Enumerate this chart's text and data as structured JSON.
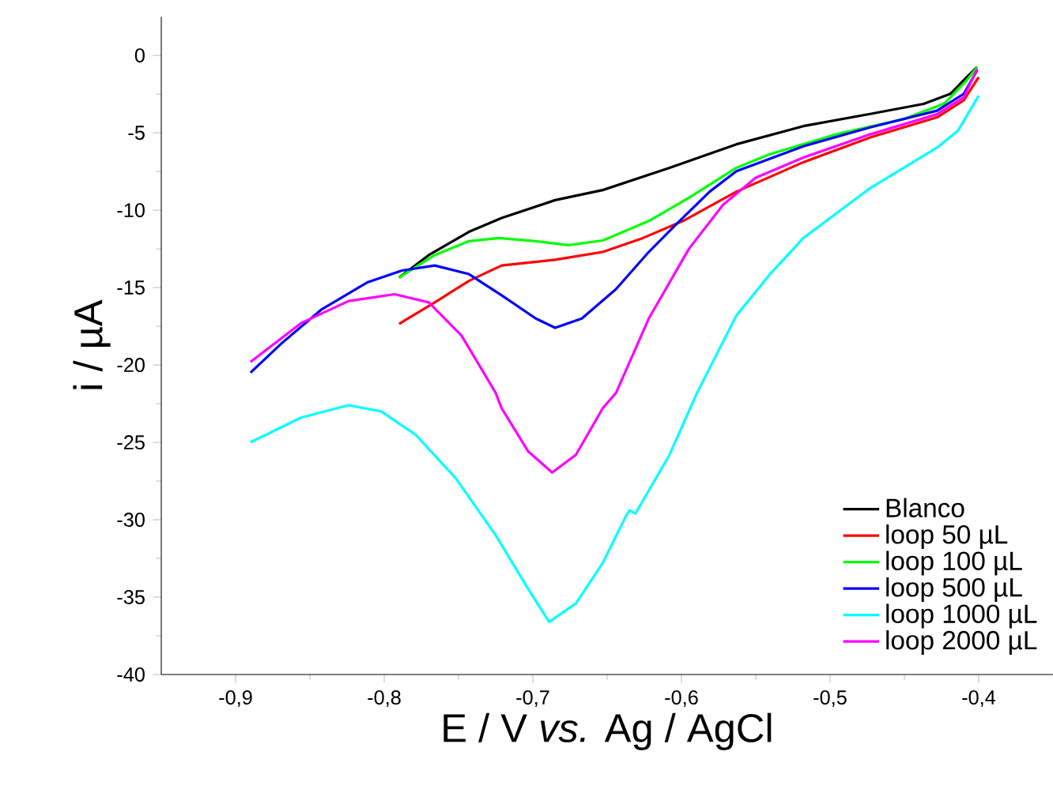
{
  "chart_data": {
    "type": "line",
    "xlabel": "E / V *vs.* Ag / AgCl",
    "ylabel": "i / µA",
    "xlim": [
      -0.95,
      -0.35
    ],
    "ylim": [
      -40,
      2.5
    ],
    "xticks": [
      {
        "value": -0.9,
        "label": "-0,9"
      },
      {
        "value": -0.8,
        "label": "-0,8"
      },
      {
        "value": -0.7,
        "label": "-0,7"
      },
      {
        "value": -0.6,
        "label": "-0,6"
      },
      {
        "value": -0.5,
        "label": "-0,5"
      },
      {
        "value": -0.4,
        "label": "-0,4"
      }
    ],
    "yticks": [
      0,
      -5,
      -10,
      -15,
      -20,
      -25,
      -30,
      -35,
      -40
    ],
    "grid": false,
    "legend": "bottom right",
    "marker": "none",
    "line_style": "solid",
    "series": [
      {
        "name": "Blanco",
        "color": "#000000",
        "x": [
          -0.79,
          -0.77,
          -0.743,
          -0.721,
          -0.685,
          -0.653,
          -0.608,
          -0.563,
          -0.518,
          -0.473,
          -0.437,
          -0.419,
          -0.408,
          -0.401
        ],
        "values": [
          -14.35,
          -12.9,
          -11.4,
          -10.5,
          -9.35,
          -8.7,
          -7.26,
          -5.74,
          -4.57,
          -3.78,
          -3.13,
          -2.48,
          -1.4,
          -0.74
        ]
      },
      {
        "name": "loop 50 µL",
        "color": "#ff0000",
        "x": [
          -0.79,
          -0.766,
          -0.743,
          -0.721,
          -0.685,
          -0.653,
          -0.626,
          -0.599,
          -0.563,
          -0.518,
          -0.473,
          -0.428,
          -0.41,
          -0.4
        ],
        "values": [
          -17.35,
          -15.96,
          -14.57,
          -13.57,
          -13.2,
          -12.7,
          -11.8,
          -10.7,
          -8.8,
          -6.9,
          -5.3,
          -4.0,
          -2.9,
          -1.4
        ]
      },
      {
        "name": "loop 100 µL",
        "color": "#00ff00",
        "x": [
          -0.79,
          -0.766,
          -0.743,
          -0.723,
          -0.698,
          -0.676,
          -0.653,
          -0.622,
          -0.595,
          -0.563,
          -0.541,
          -0.496,
          -0.45,
          -0.423,
          -0.408,
          -0.401
        ],
        "values": [
          -14.35,
          -12.9,
          -12.0,
          -11.8,
          -12.0,
          -12.26,
          -11.96,
          -10.7,
          -9.2,
          -7.26,
          -6.4,
          -5.1,
          -4.1,
          -3.1,
          -1.6,
          -0.74
        ]
      },
      {
        "name": "loop 500 µL",
        "color": "#0000ff",
        "x": [
          -0.89,
          -0.869,
          -0.842,
          -0.811,
          -0.788,
          -0.766,
          -0.743,
          -0.721,
          -0.698,
          -0.685,
          -0.667,
          -0.644,
          -0.622,
          -0.604,
          -0.581,
          -0.563,
          -0.518,
          -0.473,
          -0.428,
          -0.41,
          -0.401
        ],
        "values": [
          -20.5,
          -18.6,
          -16.4,
          -14.65,
          -13.9,
          -13.57,
          -14.13,
          -15.5,
          -17.0,
          -17.6,
          -17.0,
          -15.1,
          -12.7,
          -10.96,
          -8.8,
          -7.48,
          -5.87,
          -4.65,
          -3.57,
          -2.48,
          -0.96
        ]
      },
      {
        "name": "loop 1000 µL",
        "color": "#00ffff",
        "x": [
          -0.89,
          -0.856,
          -0.824,
          -0.802,
          -0.779,
          -0.752,
          -0.725,
          -0.703,
          -0.689,
          -0.671,
          -0.653,
          -0.637,
          -0.635,
          -0.631,
          -0.608,
          -0.59,
          -0.563,
          -0.541,
          -0.518,
          -0.473,
          -0.428,
          -0.414,
          -0.4
        ],
        "values": [
          -25.0,
          -23.4,
          -22.6,
          -23.0,
          -24.5,
          -27.3,
          -31.0,
          -34.5,
          -36.6,
          -35.4,
          -32.8,
          -29.7,
          -29.4,
          -29.6,
          -25.8,
          -21.9,
          -16.8,
          -14.2,
          -11.8,
          -8.57,
          -5.96,
          -4.87,
          -2.6
        ]
      },
      {
        "name": "loop 2000 µL",
        "color": "#ff00ff",
        "x": [
          -0.89,
          -0.856,
          -0.824,
          -0.793,
          -0.77,
          -0.748,
          -0.725,
          -0.721,
          -0.703,
          -0.687,
          -0.671,
          -0.653,
          -0.644,
          -0.622,
          -0.595,
          -0.572,
          -0.55,
          -0.518,
          -0.473,
          -0.428,
          -0.41,
          -0.401
        ],
        "values": [
          -19.8,
          -17.3,
          -15.87,
          -15.43,
          -15.96,
          -18.1,
          -21.8,
          -22.8,
          -25.6,
          -26.95,
          -25.8,
          -22.8,
          -21.8,
          -17.0,
          -12.5,
          -9.65,
          -7.9,
          -6.6,
          -5.1,
          -3.8,
          -2.7,
          -0.87
        ]
      }
    ]
  }
}
